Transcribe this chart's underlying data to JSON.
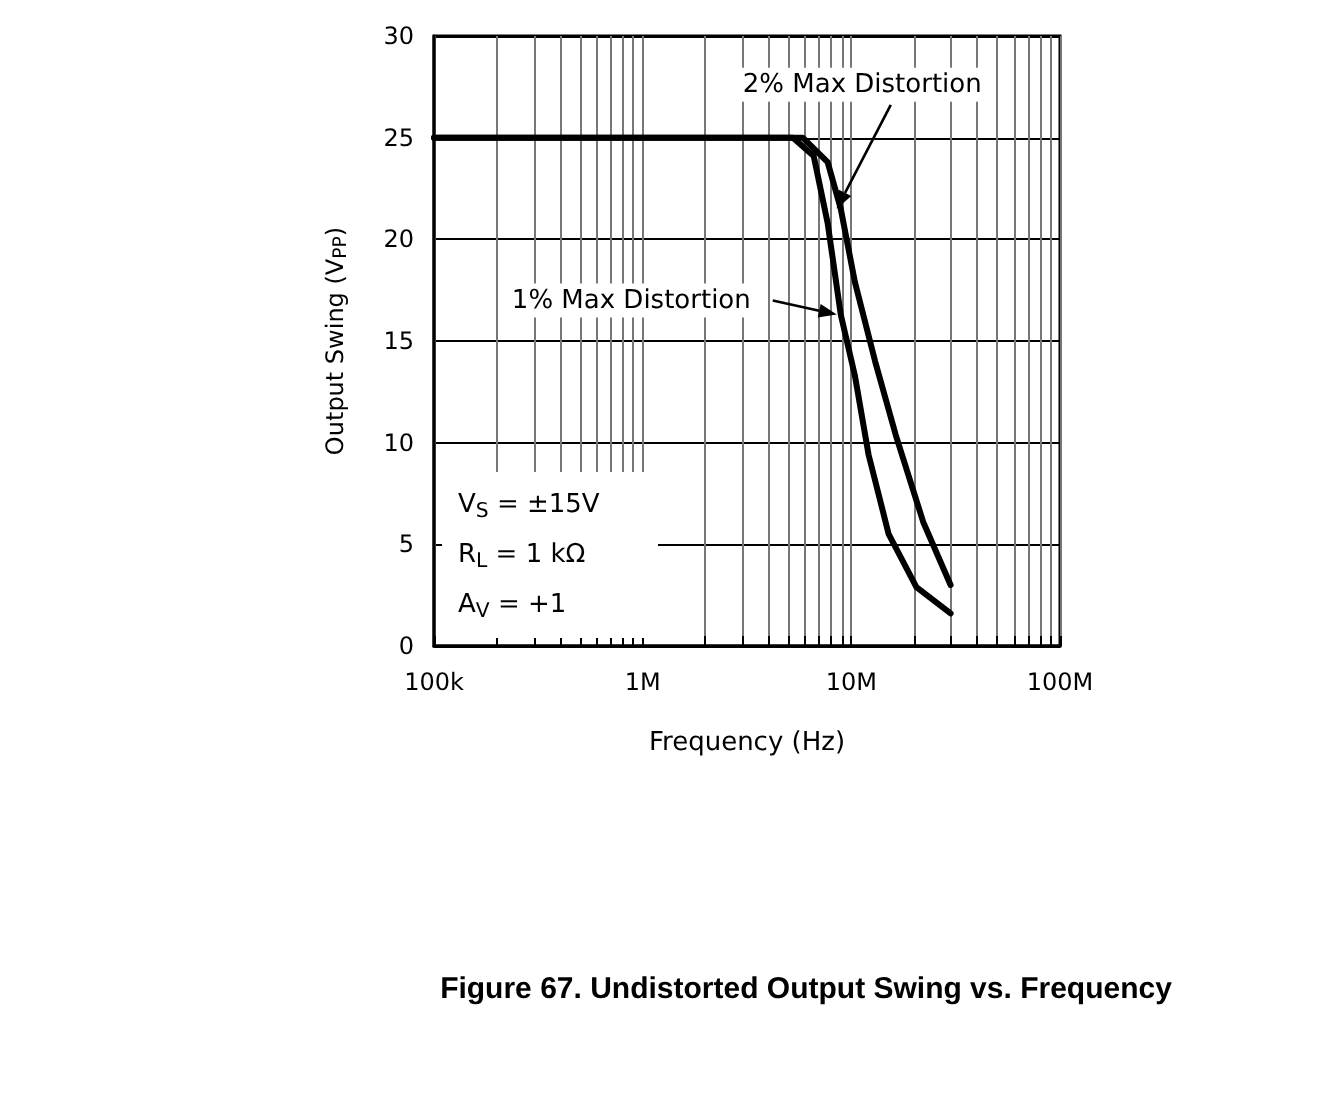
{
  "chart_data": {
    "type": "line",
    "title": "Figure 67. Undistorted Output Swing vs. Frequency",
    "xlabel": "Frequency (Hz)",
    "ylabel": "Output Swing (V$_{PP}$)",
    "log": "x",
    "grid": true,
    "line_style": "solid",
    "xlim": [
      100000,
      100000000
    ],
    "xticks": [
      {
        "value": 100000,
        "label": "100k"
      },
      {
        "value": 200000,
        "label": null
      },
      {
        "value": 300000,
        "label": null
      },
      {
        "value": 400000,
        "label": null
      },
      {
        "value": 500000,
        "label": null
      },
      {
        "value": 600000,
        "label": null
      },
      {
        "value": 700000,
        "label": null
      },
      {
        "value": 800000,
        "label": null
      },
      {
        "value": 900000,
        "label": null
      },
      {
        "value": 1000000,
        "label": "1M"
      },
      {
        "value": 2000000,
        "label": null
      },
      {
        "value": 3000000,
        "label": null
      },
      {
        "value": 4000000,
        "label": null
      },
      {
        "value": 5000000,
        "label": null
      },
      {
        "value": 6000000,
        "label": null
      },
      {
        "value": 7000000,
        "label": null
      },
      {
        "value": 8000000,
        "label": null
      },
      {
        "value": 9000000,
        "label": null
      },
      {
        "value": 10000000,
        "label": "10M"
      },
      {
        "value": 20000000,
        "label": null
      },
      {
        "value": 30000000,
        "label": null
      },
      {
        "value": 40000000,
        "label": null
      },
      {
        "value": 50000000,
        "label": null
      },
      {
        "value": 60000000,
        "label": null
      },
      {
        "value": 70000000,
        "label": null
      },
      {
        "value": 80000000,
        "label": null
      },
      {
        "value": 90000000,
        "label": null
      },
      {
        "value": 100000000,
        "label": "100M"
      }
    ],
    "ylim": [
      0,
      30
    ],
    "yticks": [
      0,
      5,
      10,
      15,
      20,
      25,
      30
    ],
    "series": [
      {
        "name": "1% Max Distortion",
        "color": "#000000",
        "x": [
          100000,
          5250000,
          6600000,
          7700000,
          8900000,
          10400000,
          12100000,
          15100000,
          20500000,
          29900000
        ],
        "values": [
          25,
          25,
          24.1,
          20.8,
          16.3,
          13.3,
          9.4,
          5.5,
          2.9,
          1.6
        ]
      },
      {
        "name": "2% Max Distortion",
        "color": "#000000",
        "x": [
          100000,
          5850000,
          7700000,
          8900000,
          10400000,
          13000000,
          16300000,
          22100000,
          29900000
        ],
        "values": [
          25,
          25,
          23.8,
          21.5,
          17.9,
          14.0,
          10.4,
          6.1,
          3.0
        ]
      }
    ],
    "annotations": [
      "V$_{S}$ = ±15V",
      "R$_{L}$ = 1 kΩ",
      "A$_{V}$ = +1"
    ]
  }
}
